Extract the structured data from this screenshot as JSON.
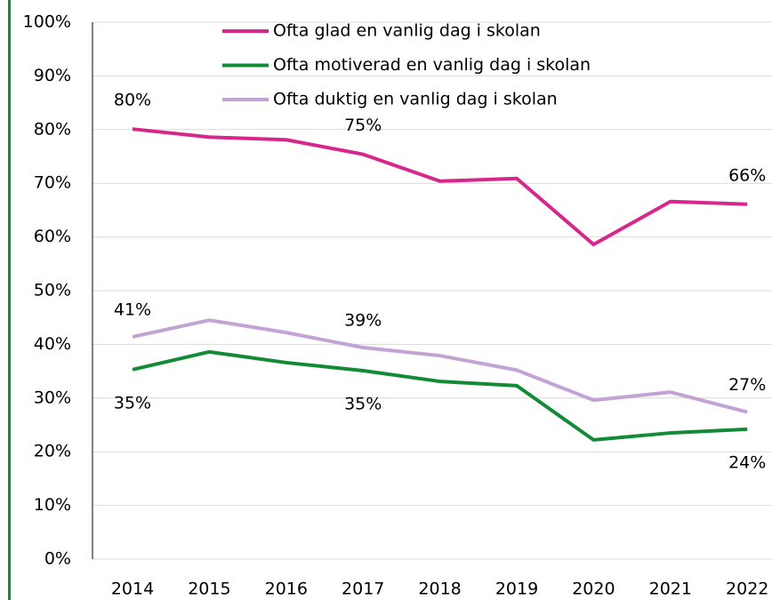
{
  "chart_data": {
    "type": "line",
    "categories": [
      "2014",
      "2015",
      "2016",
      "2017",
      "2018",
      "2019",
      "2020",
      "2021",
      "2022"
    ],
    "series": [
      {
        "name": "Ofta glad en vanlig dag i skolan",
        "color": "#d6278c",
        "values": [
          80.1,
          78.6,
          78.1,
          75.4,
          70.4,
          70.9,
          58.6,
          66.6,
          66.1
        ],
        "value_labels": [
          "80%",
          null,
          null,
          "75%",
          null,
          null,
          null,
          null,
          "66%"
        ]
      },
      {
        "name": "Ofta motiverad en vanlig dag i skolan",
        "color": "#138a36",
        "values": [
          35.3,
          38.6,
          36.6,
          35.1,
          33.1,
          32.3,
          22.2,
          23.5,
          24.2
        ],
        "value_labels": [
          "35%",
          null,
          null,
          "35%",
          null,
          null,
          null,
          null,
          "24%"
        ]
      },
      {
        "name": "Ofta duktig en vanlig dag i skolan",
        "color": "#c3a3d3",
        "values": [
          41.4,
          44.5,
          42.2,
          39.4,
          37.9,
          35.2,
          29.6,
          31.1,
          27.4
        ],
        "value_labels": [
          "41%",
          null,
          null,
          "39%",
          null,
          null,
          null,
          null,
          "27%"
        ]
      }
    ],
    "ylim": [
      0,
      100
    ],
    "yticks": [
      {
        "value": 0,
        "label": "0%"
      },
      {
        "value": 10,
        "label": "10%"
      },
      {
        "value": 20,
        "label": "20%"
      },
      {
        "value": 30,
        "label": "30%"
      },
      {
        "value": 40,
        "label": "40%"
      },
      {
        "value": 50,
        "label": "50%"
      },
      {
        "value": 60,
        "label": "60%"
      },
      {
        "value": 70,
        "label": "70%"
      },
      {
        "value": 80,
        "label": "80%"
      },
      {
        "value": 90,
        "label": "90%"
      },
      {
        "value": 100,
        "label": "100%"
      }
    ],
    "grid": true,
    "legend": "top"
  }
}
